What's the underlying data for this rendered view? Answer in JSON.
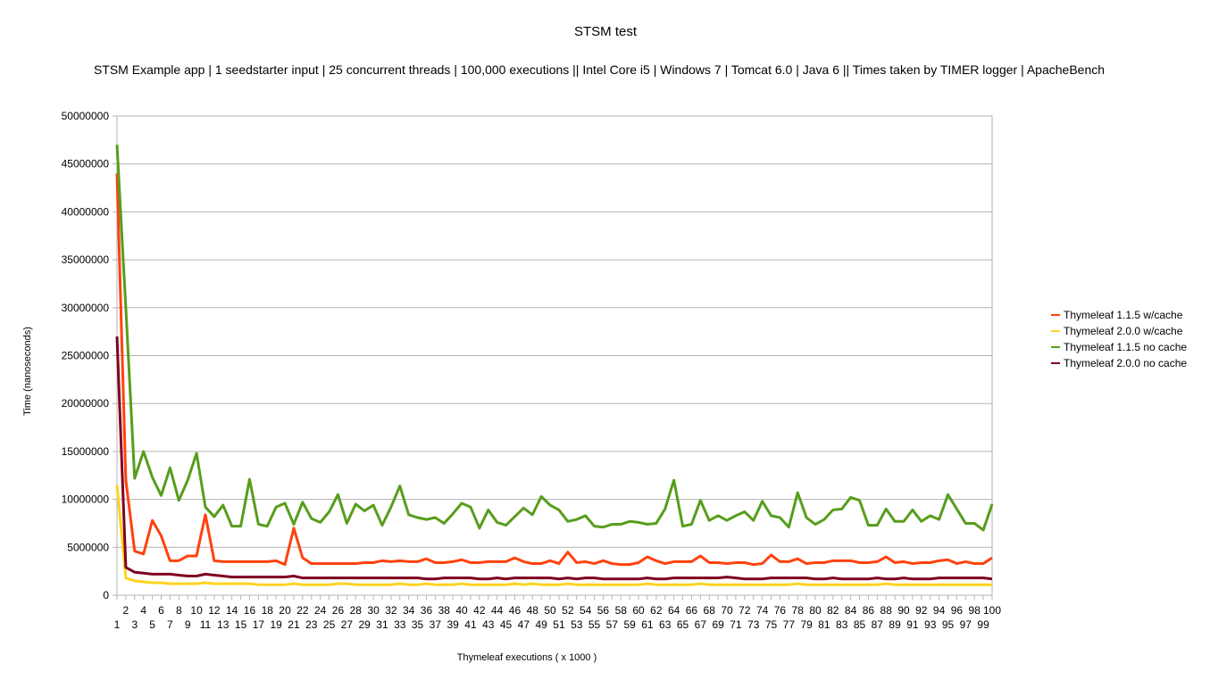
{
  "chart_data": {
    "type": "line",
    "title": "STSM test",
    "subtitle": "STSM Example app | 1 seedstarter input | 25 concurrent threads | 100,000 executions || Intel Core i5 | Windows 7 | Tomcat 6.0 | Java 6 || Times taken by TIMER logger | ApacheBench",
    "xlabel": "Thymeleaf executions ( x 1000 )",
    "ylabel": "Time (nanoseconds)",
    "ylim": [
      0,
      50000000
    ],
    "y_ticks": [
      "0",
      "5000000",
      "10000000",
      "15000000",
      "20000000",
      "25000000",
      "30000000",
      "35000000",
      "40000000",
      "45000000",
      "50000000"
    ],
    "grid": "horizontal",
    "legend_position": "right",
    "x": [
      1,
      2,
      3,
      4,
      5,
      6,
      7,
      8,
      9,
      10,
      11,
      12,
      13,
      14,
      15,
      16,
      17,
      18,
      19,
      20,
      21,
      22,
      23,
      24,
      25,
      26,
      27,
      28,
      29,
      30,
      31,
      32,
      33,
      34,
      35,
      36,
      37,
      38,
      39,
      40,
      41,
      42,
      43,
      44,
      45,
      46,
      47,
      48,
      49,
      50,
      51,
      52,
      53,
      54,
      55,
      56,
      57,
      58,
      59,
      60,
      61,
      62,
      63,
      64,
      65,
      66,
      67,
      68,
      69,
      70,
      71,
      72,
      73,
      74,
      75,
      76,
      77,
      78,
      79,
      80,
      81,
      82,
      83,
      84,
      85,
      86,
      87,
      88,
      89,
      90,
      91,
      92,
      93,
      94,
      95,
      96,
      97,
      98,
      99,
      100
    ],
    "series": [
      {
        "name": "Thymeleaf 1.1.5 w/cache",
        "color": "#ff420e",
        "values": [
          44000000,
          12000000,
          4600000,
          4300000,
          7800000,
          6200000,
          3600000,
          3600000,
          4100000,
          4100000,
          8400000,
          3600000,
          3500000,
          3500000,
          3500000,
          3500000,
          3500000,
          3500000,
          3600000,
          3200000,
          7000000,
          3900000,
          3300000,
          3300000,
          3300000,
          3300000,
          3300000,
          3300000,
          3400000,
          3400000,
          3600000,
          3500000,
          3600000,
          3500000,
          3500000,
          3800000,
          3400000,
          3400000,
          3500000,
          3700000,
          3400000,
          3400000,
          3500000,
          3500000,
          3500000,
          3900000,
          3500000,
          3300000,
          3300000,
          3600000,
          3300000,
          4500000,
          3400000,
          3500000,
          3300000,
          3600000,
          3300000,
          3200000,
          3200000,
          3400000,
          4000000,
          3600000,
          3300000,
          3500000,
          3500000,
          3500000,
          4100000,
          3400000,
          3400000,
          3300000,
          3400000,
          3400000,
          3200000,
          3300000,
          4200000,
          3500000,
          3500000,
          3800000,
          3300000,
          3400000,
          3400000,
          3600000,
          3600000,
          3600000,
          3400000,
          3400000,
          3500000,
          4000000,
          3400000,
          3500000,
          3300000,
          3400000,
          3400000,
          3600000,
          3700000,
          3300000,
          3500000,
          3300000,
          3300000,
          3900000
        ]
      },
      {
        "name": "Thymeleaf 2.0.0 w/cache",
        "color": "#ffd320",
        "values": [
          11500000,
          1800000,
          1500000,
          1400000,
          1300000,
          1300000,
          1200000,
          1200000,
          1200000,
          1200000,
          1300000,
          1200000,
          1200000,
          1200000,
          1200000,
          1200000,
          1100000,
          1100000,
          1100000,
          1100000,
          1200000,
          1100000,
          1100000,
          1100000,
          1100000,
          1200000,
          1200000,
          1100000,
          1100000,
          1100000,
          1100000,
          1100000,
          1200000,
          1100000,
          1100000,
          1200000,
          1100000,
          1100000,
          1100000,
          1200000,
          1100000,
          1100000,
          1100000,
          1100000,
          1100000,
          1200000,
          1100000,
          1200000,
          1100000,
          1100000,
          1100000,
          1200000,
          1100000,
          1100000,
          1100000,
          1100000,
          1100000,
          1100000,
          1100000,
          1100000,
          1200000,
          1100000,
          1100000,
          1100000,
          1100000,
          1100000,
          1200000,
          1100000,
          1100000,
          1100000,
          1100000,
          1100000,
          1100000,
          1100000,
          1100000,
          1100000,
          1100000,
          1200000,
          1100000,
          1100000,
          1100000,
          1100000,
          1100000,
          1100000,
          1100000,
          1100000,
          1100000,
          1200000,
          1100000,
          1100000,
          1100000,
          1100000,
          1100000,
          1100000,
          1100000,
          1100000,
          1100000,
          1100000,
          1100000,
          1100000
        ]
      },
      {
        "name": "Thymeleaf 1.1.5 no cache",
        "color": "#579d1c",
        "values": [
          47000000,
          30000000,
          12200000,
          15000000,
          12300000,
          10400000,
          13300000,
          9900000,
          12000000,
          14800000,
          9200000,
          8200000,
          9400000,
          7200000,
          7200000,
          12100000,
          7400000,
          7200000,
          9200000,
          9600000,
          7400000,
          9700000,
          8000000,
          7600000,
          8700000,
          10500000,
          7500000,
          9500000,
          8800000,
          9400000,
          7300000,
          9200000,
          11400000,
          8400000,
          8100000,
          7900000,
          8100000,
          7500000,
          8500000,
          9600000,
          9200000,
          7000000,
          8900000,
          7600000,
          7300000,
          8200000,
          9100000,
          8400000,
          10300000,
          9400000,
          8900000,
          7700000,
          7900000,
          8300000,
          7200000,
          7100000,
          7400000,
          7400000,
          7700000,
          7600000,
          7400000,
          7500000,
          9000000,
          12000000,
          7200000,
          7400000,
          9900000,
          7800000,
          8300000,
          7800000,
          8300000,
          8700000,
          7800000,
          9800000,
          8300000,
          8100000,
          7100000,
          10700000,
          8100000,
          7400000,
          7900000,
          8900000,
          9000000,
          10200000,
          9900000,
          7300000,
          7300000,
          9000000,
          7700000,
          7700000,
          8900000,
          7700000,
          8300000,
          7900000,
          10500000,
          9000000,
          7500000,
          7500000,
          6800000,
          9500000
        ]
      },
      {
        "name": "Thymeleaf 2.0.0 no cache",
        "color": "#7e0021",
        "values": [
          27000000,
          2900000,
          2400000,
          2300000,
          2200000,
          2200000,
          2200000,
          2100000,
          2000000,
          2000000,
          2200000,
          2100000,
          2000000,
          1900000,
          1900000,
          1900000,
          1900000,
          1900000,
          1900000,
          1900000,
          2000000,
          1800000,
          1800000,
          1800000,
          1800000,
          1800000,
          1800000,
          1800000,
          1800000,
          1800000,
          1800000,
          1800000,
          1800000,
          1800000,
          1800000,
          1700000,
          1700000,
          1800000,
          1800000,
          1800000,
          1800000,
          1700000,
          1700000,
          1800000,
          1700000,
          1800000,
          1800000,
          1800000,
          1800000,
          1800000,
          1700000,
          1800000,
          1700000,
          1800000,
          1800000,
          1700000,
          1700000,
          1700000,
          1700000,
          1700000,
          1800000,
          1700000,
          1700000,
          1800000,
          1800000,
          1800000,
          1800000,
          1800000,
          1800000,
          1900000,
          1800000,
          1700000,
          1700000,
          1700000,
          1800000,
          1800000,
          1800000,
          1800000,
          1800000,
          1700000,
          1700000,
          1800000,
          1700000,
          1700000,
          1700000,
          1700000,
          1800000,
          1700000,
          1700000,
          1800000,
          1700000,
          1700000,
          1700000,
          1800000,
          1800000,
          1800000,
          1800000,
          1800000,
          1800000,
          1700000
        ]
      }
    ]
  }
}
